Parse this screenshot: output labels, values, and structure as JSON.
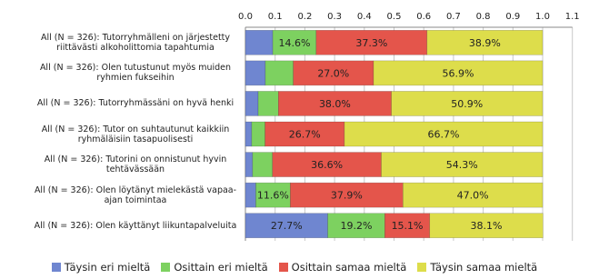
{
  "chart_data": {
    "type": "stacked-bar-horizontal",
    "categories": [
      "All (N = 326): Tutorryhmälleni on järjestetty riittävästi alkoholittomia tapahtumia",
      "All (N = 326): Olen tutustunut myös muiden ryhmien fukseihin",
      "All (N = 326): Tutorryhmässäni on hyvä henki",
      "All (N = 326): Tutor on suhtautunut kaikkiin ryhmäläisiin tasapuolisesti",
      "All (N = 326): Tutorini on onnistunut hyvin tehtävässään",
      "All (N = 326): Olen löytänyt mielekästä vapaa-ajan toimintaa",
      "All (N = 326): Olen käyttänyt liikuntapalveluita"
    ],
    "series": [
      {
        "name": "Täysin eri mieltä",
        "color": "#6f86d0",
        "values": [
          0.092,
          0.067,
          0.043,
          0.021,
          0.024,
          0.035,
          0.277
        ],
        "value_labels": [
          null,
          null,
          null,
          null,
          null,
          null,
          "27.7%"
        ]
      },
      {
        "name": "Osittain eri mieltä",
        "color": "#7dd160",
        "values": [
          0.146,
          0.094,
          0.068,
          0.045,
          0.067,
          0.116,
          0.192
        ],
        "value_labels": [
          "14.6%",
          null,
          null,
          null,
          null,
          "11.6%",
          "19.2%"
        ]
      },
      {
        "name": "Osittain samaa mieltä",
        "color": "#e4554b",
        "values": [
          0.373,
          0.27,
          0.38,
          0.267,
          0.366,
          0.379,
          0.151
        ],
        "value_labels": [
          "37.3%",
          "27.0%",
          "38.0%",
          "26.7%",
          "36.6%",
          "37.9%",
          "15.1%"
        ]
      },
      {
        "name": "Täysin samaa mieltä",
        "color": "#dddd4b",
        "values": [
          0.389,
          0.569,
          0.509,
          0.667,
          0.543,
          0.47,
          0.381
        ],
        "value_labels": [
          "38.9%",
          "56.9%",
          "50.9%",
          "66.7%",
          "54.3%",
          "47.0%",
          "38.1%"
        ]
      }
    ],
    "xlim": [
      0,
      1.1
    ],
    "xticks": [
      {
        "value": 0,
        "label": "0.0"
      },
      0.1,
      0.2,
      0.3,
      0.4,
      0.5,
      0.6,
      0.7,
      0.8,
      0.9,
      {
        "value": 1,
        "label": "1.0"
      },
      1.1
    ],
    "grid": true,
    "legend": "bottom"
  }
}
